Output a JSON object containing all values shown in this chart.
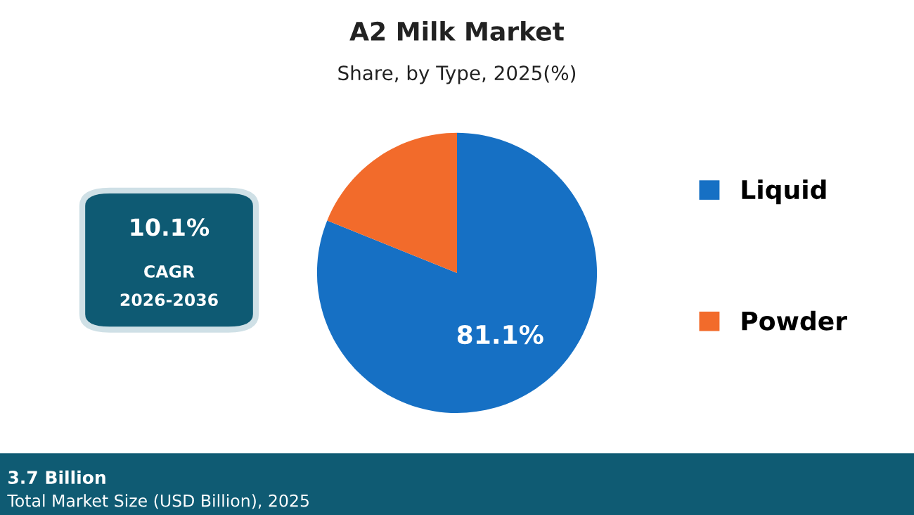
{
  "chart_data": {
    "type": "pie",
    "title": "A2 Milk Market",
    "subtitle": "Share, by Type, 2025(%)",
    "categories": [
      "Liquid",
      "Powder"
    ],
    "values": [
      81.1,
      18.9
    ],
    "colors": [
      "#1670c4",
      "#f26b2b"
    ],
    "value_labels": [
      "81.1%",
      null
    ],
    "legend": "right",
    "annotations": [
      "10.1%",
      "CAGR",
      "2026-2036",
      "3.7 Billion",
      "Total Market Size (USD Billion), 2025"
    ]
  }
}
